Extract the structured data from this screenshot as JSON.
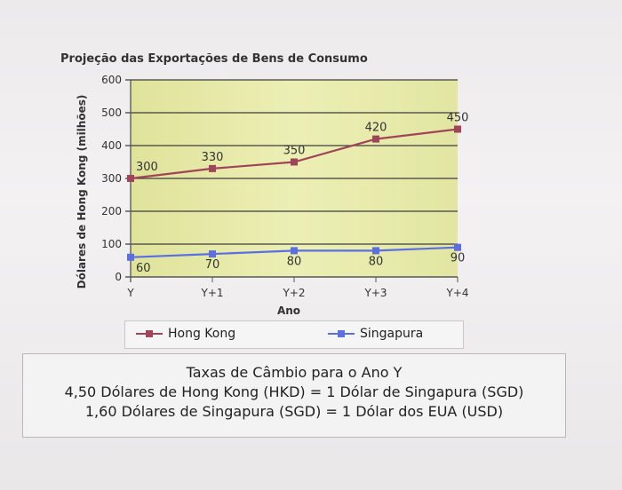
{
  "chart_data": {
    "type": "line",
    "title": "Projeção das Exportações de Bens de Consumo",
    "xlabel": "Ano",
    "ylabel": "Dólares de Hong Kong (milhões)",
    "categories": [
      "Y",
      "Y+1",
      "Y+2",
      "Y+3",
      "Y+4"
    ],
    "yticks": [
      "0",
      "100",
      "200",
      "300",
      "400",
      "500",
      "600"
    ],
    "ylim": [
      0,
      600
    ],
    "grid": true,
    "series": [
      {
        "name": "Hong Kong",
        "values": [
          300,
          330,
          350,
          420,
          450
        ],
        "labels": [
          "300",
          "330",
          "350",
          "420",
          "450"
        ],
        "color": "#a0445a"
      },
      {
        "name": "Singapura",
        "values": [
          60,
          70,
          80,
          80,
          90
        ],
        "labels": [
          "60",
          "70",
          "80",
          "80",
          "90"
        ],
        "color": "#5b6fe0"
      }
    ],
    "plot_background": "#e3e6a0",
    "gridline_color": "#3d3d3d"
  },
  "exchange_rates": {
    "title": "Taxas de Câmbio para o Ano Y",
    "line1": "4,50 Dólares de Hong Kong (HKD) = 1 Dólar de Singapura (SGD)",
    "line2": "1,60 Dólares de Singapura (SGD) = 1 Dólar dos EUA (USD)"
  }
}
